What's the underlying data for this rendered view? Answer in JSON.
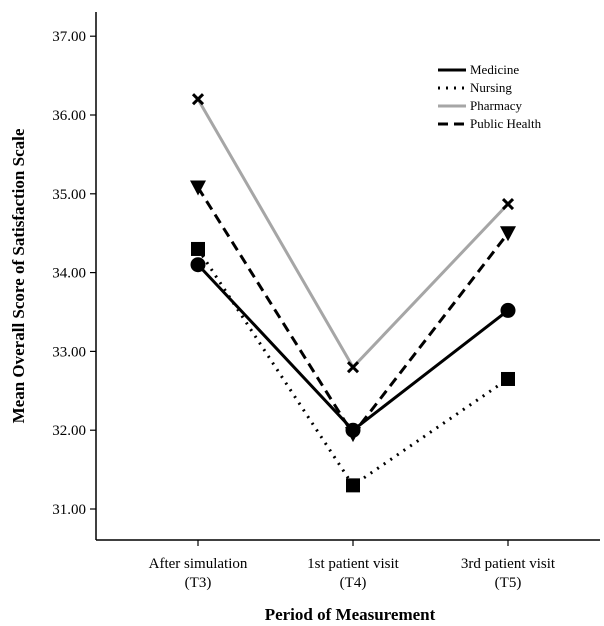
{
  "chart_data": {
    "type": "line",
    "xlabel": "Period of Measurement",
    "ylabel": "Mean Overall Score of Satisfaction Scale",
    "categories": [
      [
        "After simulation",
        "(T3)"
      ],
      [
        "1st patient visit",
        "(T4)"
      ],
      [
        "3rd patient visit",
        "(T5)"
      ]
    ],
    "ylim": [
      30.7,
      37.3
    ],
    "yticks": [
      "31.00",
      "32.00",
      "33.00",
      "34.00",
      "35.00",
      "36.00",
      "37.00"
    ],
    "grid": false,
    "legend_position": "top-right",
    "series": [
      {
        "name": "Medicine",
        "values": [
          34.1,
          32.0,
          33.52
        ],
        "color": "#000000",
        "dash": "solid",
        "marker": "circle"
      },
      {
        "name": "Nursing",
        "values": [
          34.3,
          31.3,
          32.65
        ],
        "color": "#000000",
        "dash": "dotted",
        "marker": "square"
      },
      {
        "name": "Pharmacy",
        "values": [
          36.2,
          32.8,
          34.87
        ],
        "color": "#a6a6a6",
        "dash": "solid",
        "marker": "x"
      },
      {
        "name": "Public Health",
        "values": [
          35.08,
          31.95,
          34.5
        ],
        "color": "#000000",
        "dash": "dashed",
        "marker": "triangle-down"
      }
    ]
  }
}
